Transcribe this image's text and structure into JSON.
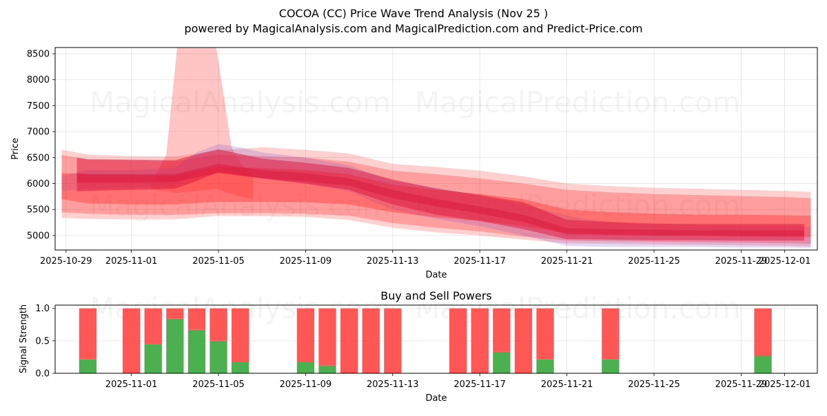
{
  "chart_data": [
    {
      "type": "area",
      "title": "COCOA (CC) Price Wave Trend Analysis (Nov 25 )",
      "subtitle": "powered by MagicalAnalysis.com and MagicalPrediction.com and Predict-Price.com",
      "xlabel": "Date",
      "ylabel": "Price",
      "xlim": [
        -0.5,
        34.5
      ],
      "ylim": [
        4720,
        8620
      ],
      "x_ticks": [
        {
          "label": "2025-10-29",
          "day": 0
        },
        {
          "label": "2025-11-01",
          "day": 3
        },
        {
          "label": "2025-11-05",
          "day": 7
        },
        {
          "label": "2025-11-09",
          "day": 11
        },
        {
          "label": "2025-11-13",
          "day": 15
        },
        {
          "label": "2025-11-17",
          "day": 19
        },
        {
          "label": "2025-11-21",
          "day": 23
        },
        {
          "label": "2025-11-25",
          "day": 27
        },
        {
          "label": "2025-11-29",
          "day": 31
        },
        {
          "label": "2025-12-01",
          "day": 33
        }
      ],
      "y_ticks": [
        5000,
        5500,
        6000,
        6500,
        7000,
        7500,
        8000,
        8500
      ],
      "grid": true,
      "watermarks": [
        "MagicalAnalysis.com",
        "MagicalPrediction.com"
      ],
      "bands": [
        {
          "name": "band-outer",
          "color": "#ff2a2a",
          "opacity": 0.22,
          "x": [
            -0.2,
            1,
            3,
            5,
            7,
            9,
            11,
            13,
            15,
            17,
            19,
            21,
            23,
            25,
            27,
            29,
            31,
            33,
            34.2
          ],
          "upper": [
            6650,
            6560,
            6530,
            6520,
            6640,
            6700,
            6650,
            6580,
            6380,
            6320,
            6250,
            6140,
            6000,
            5950,
            5920,
            5900,
            5880,
            5860,
            5840
          ],
          "lower": [
            5340,
            5320,
            5310,
            5310,
            5380,
            5370,
            5360,
            5300,
            5150,
            5060,
            5000,
            4920,
            4850,
            4840,
            4830,
            4820,
            4810,
            4800,
            4790
          ]
        },
        {
          "name": "band-spike",
          "color": "#ff2a2a",
          "opacity": 0.28,
          "x": [
            3.9,
            4.6,
            5.1,
            6.9,
            7.6,
            8.0,
            8.6
          ],
          "upper": [
            6000,
            6550,
            8620,
            8620,
            6700,
            6400,
            6150
          ],
          "lower": [
            5900,
            5850,
            5820,
            5900,
            5800,
            5750,
            5700
          ]
        },
        {
          "name": "band-mid",
          "color": "#ff2a2a",
          "opacity": 0.3,
          "x": [
            -0.2,
            1,
            3,
            5,
            7,
            9,
            11,
            13,
            15,
            17,
            19,
            21,
            23,
            25,
            27,
            29,
            31,
            33,
            34.2
          ],
          "upper": [
            6550,
            6460,
            6450,
            6430,
            6560,
            6530,
            6500,
            6420,
            6250,
            6180,
            6100,
            6000,
            5880,
            5830,
            5800,
            5780,
            5760,
            5740,
            5720
          ],
          "lower": [
            5450,
            5420,
            5400,
            5400,
            5430,
            5430,
            5420,
            5380,
            5240,
            5150,
            5080,
            4980,
            4900,
            4890,
            4880,
            4870,
            4860,
            4850,
            4840
          ]
        },
        {
          "name": "band-purple",
          "color": "#7a4ecc",
          "opacity": 0.22,
          "x": [
            -0.2,
            1,
            3,
            5,
            6,
            7,
            8,
            9,
            11,
            13,
            15,
            17,
            19,
            21,
            23,
            25,
            27,
            29,
            31,
            33,
            34.2
          ],
          "upper": [
            6150,
            6260,
            6260,
            6300,
            6600,
            6760,
            6700,
            6600,
            6500,
            6350,
            6050,
            5920,
            5760,
            5600,
            5380,
            5250,
            5210,
            5200,
            5190,
            5180,
            5170
          ],
          "lower": [
            5850,
            5900,
            5920,
            5950,
            6200,
            6300,
            6200,
            6100,
            6000,
            5850,
            5500,
            5320,
            5180,
            5000,
            4800,
            4780,
            4780,
            4780,
            4770,
            4770,
            4760
          ]
        },
        {
          "name": "band-inner",
          "color": "#ff2a2a",
          "opacity": 0.4,
          "x": [
            -0.2,
            1,
            3,
            5,
            7,
            9,
            11,
            13,
            15,
            17,
            19,
            21,
            23,
            25,
            27,
            29,
            31,
            33,
            34.2
          ],
          "upper": [
            6200,
            6180,
            6170,
            6150,
            6320,
            6300,
            6260,
            6180,
            5980,
            5880,
            5800,
            5700,
            5500,
            5450,
            5420,
            5400,
            5400,
            5390,
            5380
          ],
          "lower": [
            5700,
            5620,
            5600,
            5600,
            5650,
            5650,
            5640,
            5600,
            5450,
            5350,
            5280,
            5180,
            5050,
            5020,
            5000,
            4990,
            4980,
            4970,
            4970
          ]
        },
        {
          "name": "band-core",
          "color": "#dc143c",
          "opacity": 0.5,
          "x": [
            0.5,
            1,
            3,
            5,
            6,
            7,
            9,
            11,
            13,
            15,
            17,
            19,
            21,
            23,
            25,
            27,
            29,
            31,
            33,
            33.9
          ],
          "upper": [
            6500,
            6470,
            6460,
            6450,
            6560,
            6660,
            6480,
            6400,
            6300,
            6080,
            5900,
            5780,
            5640,
            5300,
            5260,
            5230,
            5220,
            5220,
            5220,
            5220
          ],
          "lower": [
            5850,
            5860,
            5880,
            5900,
            6050,
            6220,
            6100,
            6000,
            5880,
            5600,
            5400,
            5280,
            5120,
            4930,
            4920,
            4910,
            4910,
            4900,
            4900,
            4900
          ]
        },
        {
          "name": "band-core-line",
          "color": "#dc143c",
          "opacity": 0.45,
          "x": [
            0.5,
            1,
            3,
            5,
            6,
            7,
            9,
            11,
            13,
            15,
            17,
            19,
            21,
            23,
            25,
            27,
            29,
            31,
            33,
            33.9
          ],
          "upper": [
            6200,
            6180,
            6180,
            6180,
            6280,
            6380,
            6260,
            6200,
            6100,
            5880,
            5700,
            5560,
            5400,
            5140,
            5120,
            5110,
            5100,
            5100,
            5100,
            5100
          ],
          "lower": [
            6020,
            6020,
            6020,
            6030,
            6120,
            6200,
            6100,
            6040,
            5960,
            5720,
            5560,
            5420,
            5260,
            5020,
            5010,
            5000,
            5000,
            4990,
            4990,
            4990
          ]
        }
      ]
    },
    {
      "type": "bar",
      "title": "Buy and Sell Powers",
      "xlabel": "Date",
      "ylabel": "Signal Strength",
      "xlim": [
        -0.5,
        34.5
      ],
      "ylim": [
        0,
        1.05
      ],
      "x_ticks": [
        {
          "label": "2025-11-01",
          "day": 3
        },
        {
          "label": "2025-11-05",
          "day": 7
        },
        {
          "label": "2025-11-09",
          "day": 11
        },
        {
          "label": "2025-11-13",
          "day": 15
        },
        {
          "label": "2025-11-17",
          "day": 19
        },
        {
          "label": "2025-11-21",
          "day": 23
        },
        {
          "label": "2025-11-25",
          "day": 27
        },
        {
          "label": "2025-11-29",
          "day": 31
        },
        {
          "label": "2025-12-01",
          "day": 33
        }
      ],
      "y_ticks": [
        0.0,
        0.5,
        1.0
      ],
      "grid": true,
      "buy_color": "#4caf50",
      "sell_color": "#ff4d4d",
      "bars": [
        {
          "day": 1,
          "buy": 0.22
        },
        {
          "day": 3,
          "buy": 0.0
        },
        {
          "day": 4,
          "buy": 0.45
        },
        {
          "day": 5,
          "buy": 0.84
        },
        {
          "day": 6,
          "buy": 0.67
        },
        {
          "day": 7,
          "buy": 0.5
        },
        {
          "day": 8,
          "buy": 0.17
        },
        {
          "day": 11,
          "buy": 0.17
        },
        {
          "day": 12,
          "buy": 0.12
        },
        {
          "day": 13,
          "buy": 0.0
        },
        {
          "day": 14,
          "buy": 0.0
        },
        {
          "day": 15,
          "buy": 0.0
        },
        {
          "day": 18,
          "buy": 0.0
        },
        {
          "day": 19,
          "buy": 0.0
        },
        {
          "day": 20,
          "buy": 0.33
        },
        {
          "day": 21,
          "buy": 0.0
        },
        {
          "day": 22,
          "buy": 0.22
        },
        {
          "day": 25,
          "buy": 0.22
        },
        {
          "day": 32,
          "buy": 0.27
        }
      ]
    }
  ]
}
